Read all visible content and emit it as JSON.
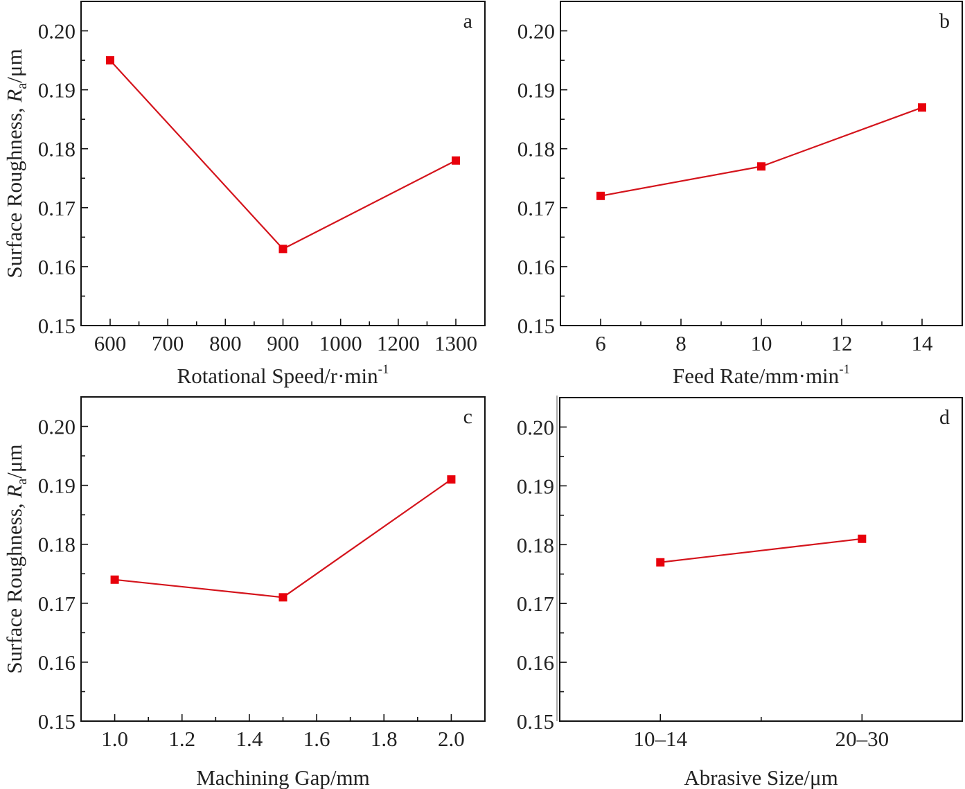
{
  "figure": {
    "y_axis_title": {
      "prefix": "Surface Roughness, ",
      "symbol": "R",
      "subscript": "a",
      "unit": "/μm"
    }
  },
  "chart_data": [
    {
      "panel": "a",
      "type": "line",
      "xlabel": "Rotational Speed/r·min",
      "xlabel_superscript": "-1",
      "ylabel": "Surface Roughness, Ra/μm",
      "x_scale": "categorical",
      "categories": [
        "600",
        "700",
        "800",
        "900",
        "1000",
        "1200",
        "1300"
      ],
      "series": [
        {
          "name": "Ra",
          "color": "#e8000b",
          "x": [
            "600",
            "900",
            "1300"
          ],
          "values": [
            0.195,
            0.163,
            0.178
          ]
        }
      ],
      "yticks": [
        "0.15",
        "0.16",
        "0.17",
        "0.18",
        "0.19",
        "0.20"
      ],
      "ylim": [
        0.15,
        0.205
      ],
      "marker": "square",
      "grid": false
    },
    {
      "panel": "b",
      "type": "line",
      "xlabel": "Feed Rate/mm·min",
      "xlabel_superscript": "-1",
      "ylabel": "",
      "x_scale": "linear",
      "xlim": [
        5,
        15
      ],
      "xticks": [
        "6",
        "8",
        "10",
        "12",
        "14"
      ],
      "series": [
        {
          "name": "Ra",
          "color": "#e8000b",
          "x": [
            6,
            10,
            14
          ],
          "values": [
            0.172,
            0.177,
            0.187
          ]
        }
      ],
      "yticks": [
        "0.15",
        "0.16",
        "0.17",
        "0.18",
        "0.19",
        "0.20"
      ],
      "ylim": [
        0.15,
        0.205
      ],
      "marker": "square",
      "grid": false
    },
    {
      "panel": "c",
      "type": "line",
      "xlabel": "Machining Gap/mm",
      "xlabel_superscript": "",
      "ylabel": "Surface Roughness, Ra/μm",
      "x_scale": "linear",
      "xlim": [
        0.9,
        2.1
      ],
      "xticks": [
        "1.0",
        "1.2",
        "1.4",
        "1.6",
        "1.8",
        "2.0"
      ],
      "series": [
        {
          "name": "Ra",
          "color": "#e8000b",
          "x": [
            1.0,
            1.5,
            2.0
          ],
          "values": [
            0.174,
            0.171,
            0.191
          ]
        }
      ],
      "yticks": [
        "0.15",
        "0.16",
        "0.17",
        "0.18",
        "0.19",
        "0.20"
      ],
      "ylim": [
        0.15,
        0.205
      ],
      "marker": "square",
      "grid": false
    },
    {
      "panel": "d",
      "type": "line",
      "xlabel": "Abrasive Size/μm",
      "xlabel_superscript": "",
      "ylabel": "",
      "x_scale": "categorical",
      "categories": [
        "10–14",
        "20–30"
      ],
      "series": [
        {
          "name": "Ra",
          "color": "#e8000b",
          "x": [
            "10–14",
            "20–30"
          ],
          "values": [
            0.177,
            0.181
          ]
        }
      ],
      "yticks": [
        "0.15",
        "0.16",
        "0.17",
        "0.18",
        "0.19",
        "0.20"
      ],
      "ylim": [
        0.15,
        0.205
      ],
      "marker": "square",
      "grid": false
    }
  ]
}
